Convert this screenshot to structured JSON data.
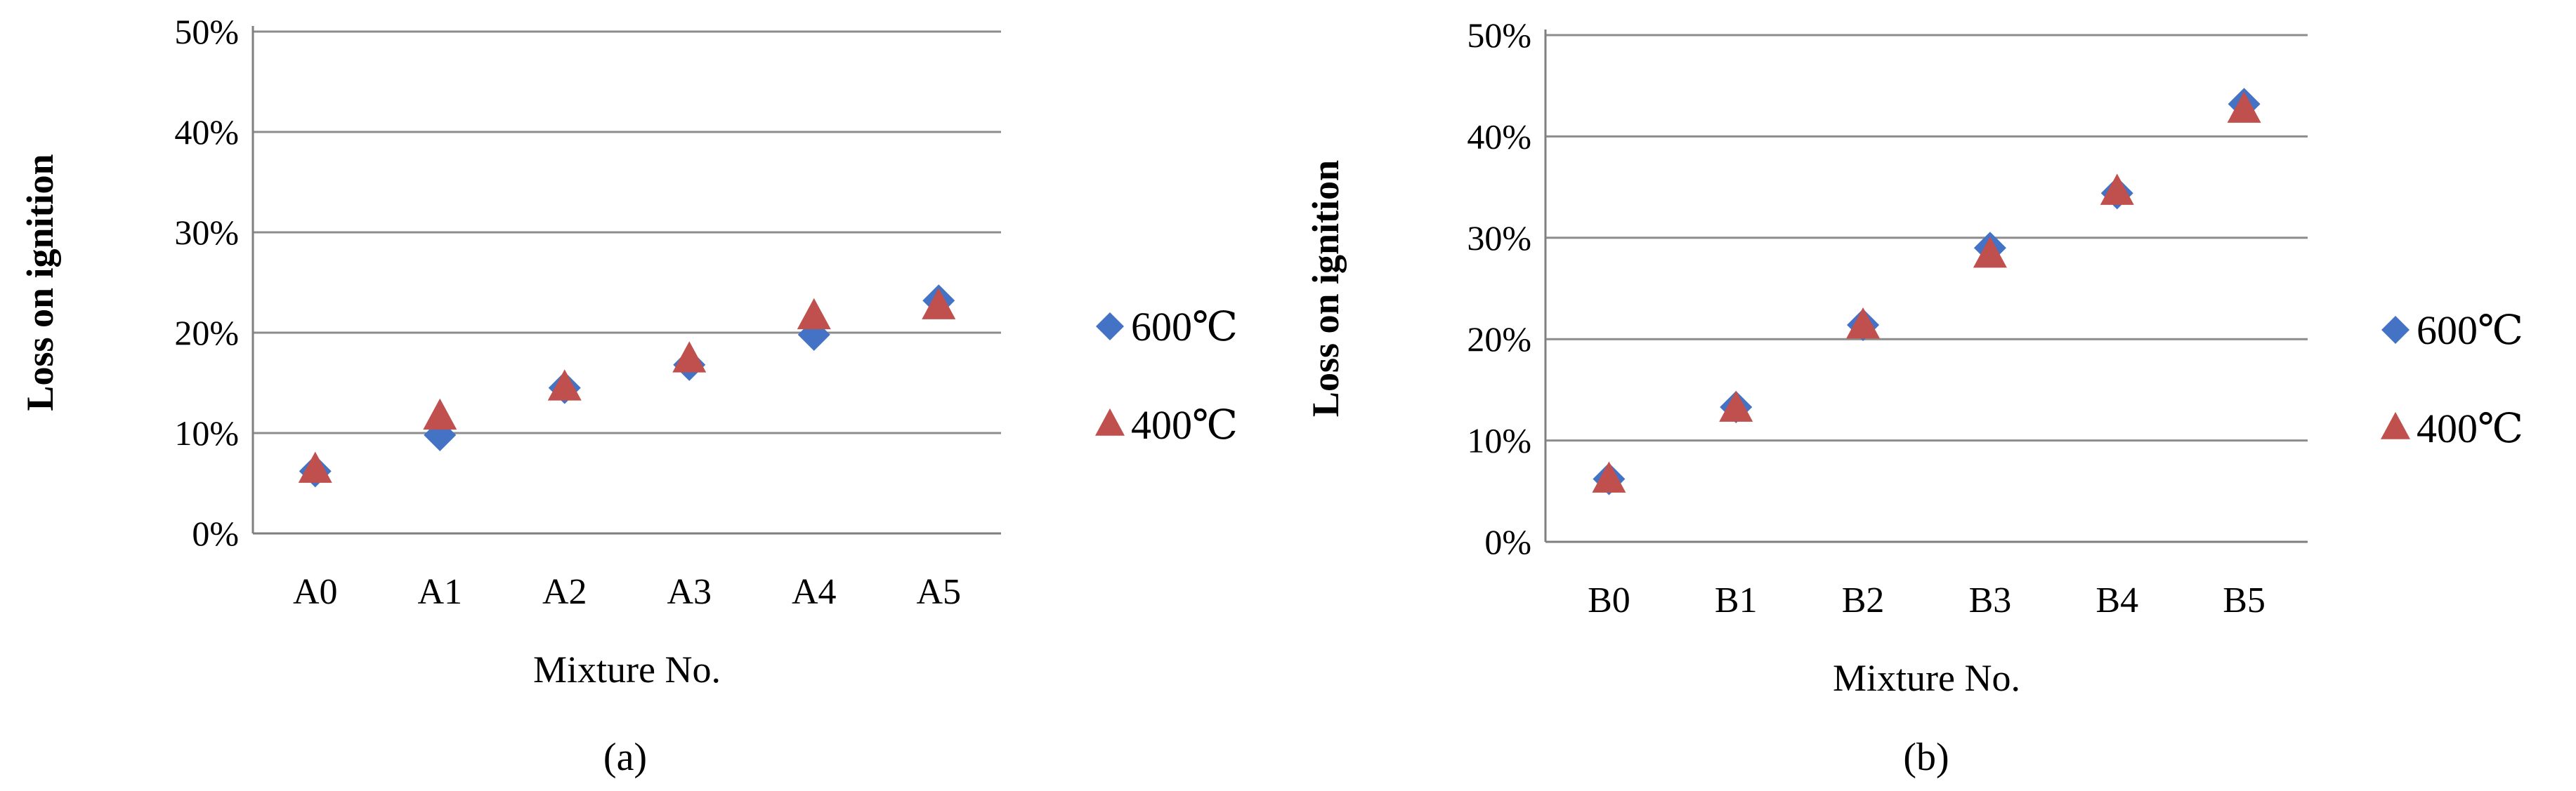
{
  "chart_data": [
    {
      "type": "scatter",
      "panel_label": "(a)",
      "categories": [
        "A0",
        "A1",
        "A2",
        "A3",
        "A4",
        "A5"
      ],
      "series": [
        {
          "name": "600℃",
          "marker": "diamond",
          "color": "#4472C4",
          "values": [
            6.2,
            9.8,
            14.5,
            16.8,
            19.8,
            23.2
          ]
        },
        {
          "name": "400℃",
          "marker": "triangle",
          "color": "#C0504D",
          "values": [
            6.3,
            11.6,
            14.5,
            17.3,
            21.6,
            22.6
          ]
        }
      ],
      "xlabel": "Mixture No.",
      "ylabel": "Loss on ignition",
      "ylim": [
        0,
        50
      ],
      "yticks": [
        "0%",
        "10%",
        "20%",
        "30%",
        "40%",
        "50%"
      ],
      "grid": true,
      "legend": "right"
    },
    {
      "type": "scatter",
      "panel_label": "(b)",
      "categories": [
        "B0",
        "B1",
        "B2",
        "B3",
        "B4",
        "B5"
      ],
      "series": [
        {
          "name": "600℃",
          "marker": "diamond",
          "color": "#4472C4",
          "values": [
            6.2,
            13.3,
            21.4,
            29.0,
            34.4,
            43.2
          ]
        },
        {
          "name": "400℃",
          "marker": "triangle",
          "color": "#C0504D",
          "values": [
            6.1,
            13.1,
            21.3,
            28.3,
            34.5,
            42.6
          ]
        }
      ],
      "xlabel": "Mixture No.",
      "ylabel": "Loss on ignition",
      "ylim": [
        0,
        50
      ],
      "yticks": [
        "0%",
        "10%",
        "20%",
        "30%",
        "40%",
        "50%"
      ],
      "grid": true,
      "legend": "right"
    }
  ]
}
